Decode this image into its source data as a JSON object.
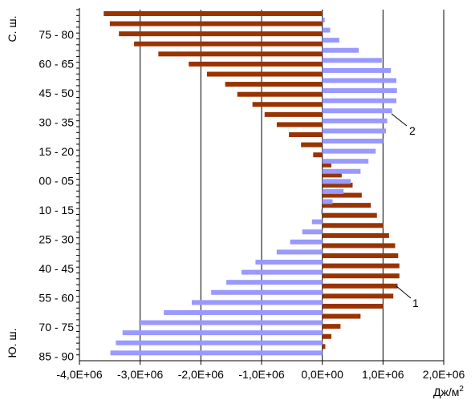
{
  "chart_data": {
    "type": "bar",
    "orientation": "horizontal",
    "grid": "vertical",
    "xlim": [
      -4000000,
      2000000
    ],
    "x_ticks": [
      -4000000,
      -3000000,
      -2000000,
      -1000000,
      0,
      1000000,
      2000000
    ],
    "x_tick_labels": [
      "-4,0E+06",
      "-3,0E+06",
      "-2,0E+06",
      "-1,0E+06",
      "0,0E+00",
      "1,0E+06",
      "2,0E+06"
    ],
    "xlabel": "Дж/м",
    "xlabel_sup": "2",
    "ylabel_north": "С. ш.",
    "ylabel_south": "Ю. ш.",
    "y_tick_labels": [
      "75 - 80",
      "60 - 65",
      "45 - 50",
      "30 - 35",
      "15 - 20",
      "00 - 05",
      "10 - 15",
      "25 - 30",
      "40 - 45",
      "55 - 60",
      "70 - 75",
      "85 - 90"
    ],
    "series": [
      {
        "label": "1",
        "color": "#993300",
        "values": [
          -3600000,
          -3500000,
          -3350000,
          -3100000,
          -2700000,
          -2200000,
          -1900000,
          -1600000,
          -1400000,
          -1150000,
          -950000,
          -750000,
          -550000,
          -350000,
          -150000,
          150000,
          320000,
          500000,
          650000,
          800000,
          900000,
          1000000,
          1100000,
          1200000,
          1250000,
          1270000,
          1270000,
          1240000,
          1170000,
          1000000,
          630000,
          300000,
          150000,
          50000
        ]
      },
      {
        "label": "2",
        "color": "#9999ff",
        "values": [
          0,
          40000,
          130000,
          280000,
          600000,
          980000,
          1130000,
          1220000,
          1230000,
          1220000,
          1150000,
          1070000,
          1050000,
          1000000,
          880000,
          760000,
          630000,
          470000,
          350000,
          170000,
          -20000,
          -170000,
          -330000,
          -530000,
          -750000,
          -1100000,
          -1330000,
          -1580000,
          -1830000,
          -2150000,
          -2610000,
          -3020000,
          -3290000,
          -3400000,
          -3490000
        ]
      }
    ],
    "annotations": [
      {
        "text": "1",
        "series": "1"
      },
      {
        "text": "2",
        "series": "2"
      }
    ]
  }
}
